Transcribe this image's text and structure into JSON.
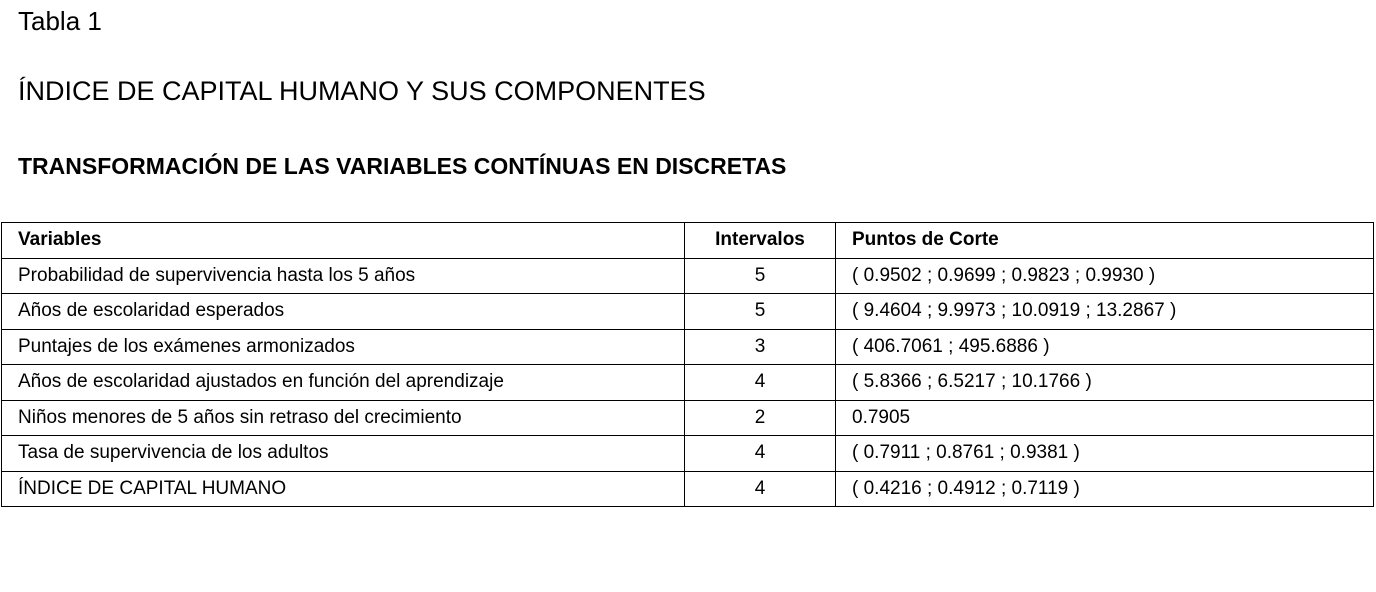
{
  "doc": {
    "label": "Tabla 1",
    "title": "ÍNDICE DE CAPITAL HUMANO Y SUS COMPONENTES",
    "subtitle": "TRANSFORMACIÓN DE LAS VARIABLES CONTÍNUAS EN DISCRETAS"
  },
  "table": {
    "headers": [
      "Variables",
      "Intervalos",
      "Puntos de Corte"
    ],
    "rows": [
      [
        "Probabilidad de supervivencia hasta los 5 años",
        "5",
        "( 0.9502 ; 0.9699 ; 0.9823 ; 0.9930 )"
      ],
      [
        "Años de escolaridad esperados",
        "5",
        "( 9.4604 ; 9.9973 ; 10.0919 ; 13.2867 )"
      ],
      [
        "Puntajes de los exámenes armonizados",
        "3",
        "( 406.7061 ; 495.6886 )"
      ],
      [
        "Años de escolaridad ajustados en función del aprendizaje",
        "4",
        "( 5.8366 ; 6.5217 ; 10.1766 )"
      ],
      [
        "Niños menores de 5 años sin retraso del crecimiento",
        "2",
        "0.7905"
      ],
      [
        "Tasa de supervivencia de los adultos",
        "4",
        "( 0.7911 ; 0.8761 ; 0.9381 )"
      ],
      [
        "ÍNDICE DE CAPITAL HUMANO",
        "4",
        "( 0.4216 ; 0.4912 ; 0.7119 )"
      ]
    ]
  }
}
